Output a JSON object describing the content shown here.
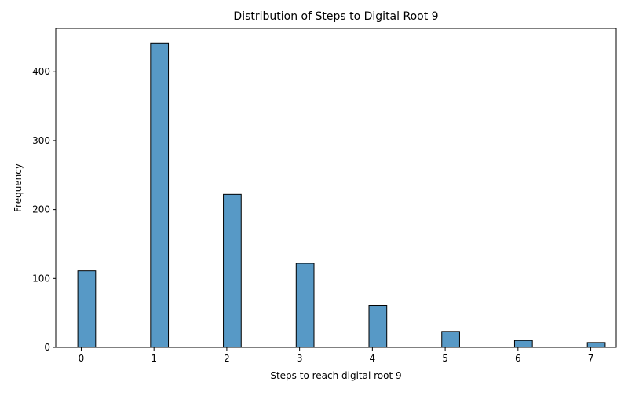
{
  "chart_data": {
    "type": "bar",
    "title": "Distribution of Steps to Digital Root 9",
    "xlabel": "Steps to reach digital root 9",
    "ylabel": "Frequency",
    "x": [
      0,
      1,
      2,
      3,
      4,
      5,
      6,
      7
    ],
    "values": [
      111,
      441,
      222,
      122,
      61,
      23,
      10,
      7
    ],
    "xlim": [
      -0.35,
      7.35
    ],
    "ylim": [
      0,
      463
    ],
    "xticks": [
      0,
      1,
      2,
      3,
      4,
      5,
      6,
      7
    ],
    "yticks": [
      0,
      100,
      200,
      300,
      400
    ],
    "grid": false,
    "bar_color": "#5799c6",
    "edge_color": "#000000"
  }
}
